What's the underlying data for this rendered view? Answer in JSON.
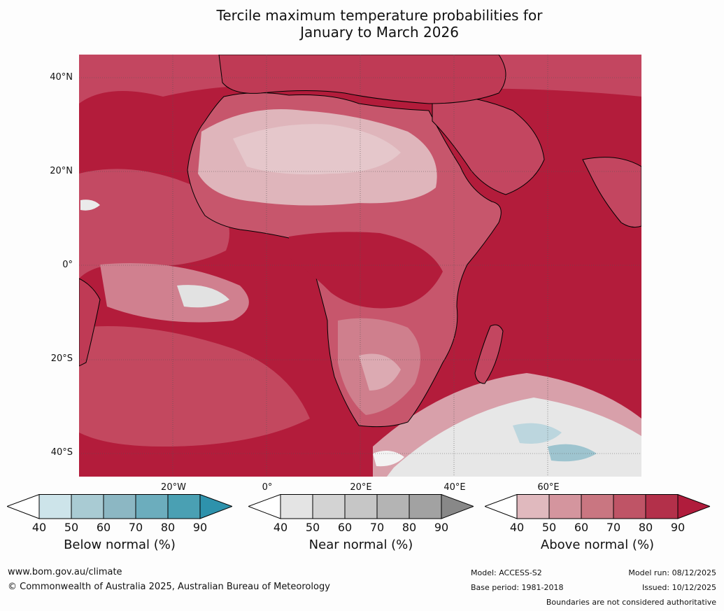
{
  "title_line1": "Tercile maximum temperature probabilities for",
  "title_line2": "January to March 2026",
  "lat_labels": [
    "40°N",
    "20°N",
    "0°",
    "20°S",
    "40°S"
  ],
  "lon_labels": [
    "20°W",
    "0°",
    "20°E",
    "40°E",
    "60°E"
  ],
  "colorbars": [
    {
      "label": "Below normal (%)",
      "ticks": [
        "40",
        "50",
        "60",
        "70",
        "80",
        "90"
      ],
      "colors": [
        "#ffffff",
        "#cde4ea",
        "#a9cbd3",
        "#8cb7c3",
        "#6cadbd",
        "#4aa0b3",
        "#2e92ac"
      ]
    },
    {
      "label": "Near normal (%)",
      "ticks": [
        "40",
        "50",
        "60",
        "70",
        "80",
        "90"
      ],
      "colors": [
        "#ffffff",
        "#e4e4e4",
        "#d3d3d3",
        "#c6c6c6",
        "#b4b4b4",
        "#a2a2a2",
        "#888888"
      ]
    },
    {
      "label": "Above normal (%)",
      "ticks": [
        "40",
        "50",
        "60",
        "70",
        "80",
        "90"
      ],
      "colors": [
        "#ffffff",
        "#e0b9be",
        "#d4959e",
        "#c97681",
        "#bf5466",
        "#b3304a",
        "#b01c3c"
      ]
    }
  ],
  "footer": {
    "website": "www.bom.gov.au/climate",
    "copyright": "© Commonwealth of Australia 2025, Australian Bureau of Meteorology",
    "model": "Model: ACCESS-S2",
    "base_period": "Base period: 1981-2018",
    "model_run": "Model run: 08/12/2025",
    "issued": "Issued: 10/12/2025",
    "disclaimer": "Boundaries are not considered authoritative"
  }
}
